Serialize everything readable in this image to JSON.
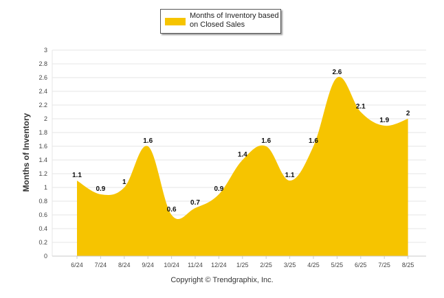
{
  "chart_data": {
    "type": "area",
    "categories": [
      "6/24",
      "7/24",
      "8/24",
      "9/24",
      "10/24",
      "11/24",
      "12/24",
      "1/25",
      "2/25",
      "3/25",
      "4/25",
      "5/25",
      "6/25",
      "7/25",
      "8/25"
    ],
    "series": [
      {
        "name": "Months of Inventory based on Closed Sales",
        "values": [
          1.1,
          0.9,
          1,
          1.6,
          0.6,
          0.7,
          0.9,
          1.4,
          1.6,
          1.1,
          1.6,
          2.6,
          2.1,
          1.9,
          2
        ]
      }
    ],
    "ylabel": "Months of Inventory",
    "ylim": [
      0,
      3
    ],
    "yticks": [
      "0",
      "0.2",
      "0.4",
      "0.6",
      "0.8",
      "1",
      "1.2",
      "1.4",
      "1.6",
      "1.8",
      "2",
      "2.2",
      "2.4",
      "2.6",
      "2.8",
      "3"
    ],
    "grid": true,
    "legend_position": "top-center",
    "color": "#f6c400"
  },
  "legend": {
    "label": "Months of Inventory based on Closed Sales"
  },
  "footer": {
    "copyright": "Copyright © Trendgraphix, Inc."
  }
}
